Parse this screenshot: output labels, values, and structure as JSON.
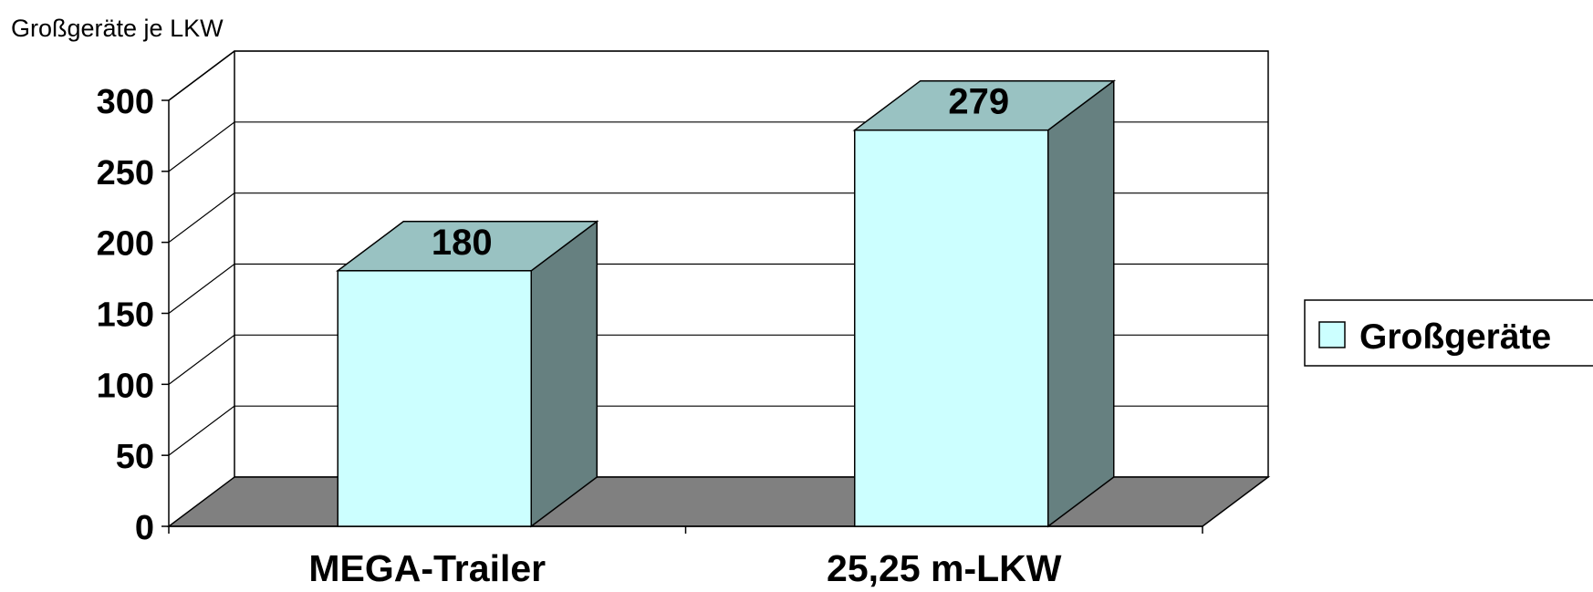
{
  "chart_data": {
    "type": "bar",
    "ylabel": "Großgeräte je LKW",
    "categories": [
      "MEGA-Trailer",
      "25,25 m-LKW"
    ],
    "series": [
      {
        "name": "Großgeräte",
        "values": [
          180,
          279
        ]
      }
    ],
    "ylim": [
      0,
      300
    ],
    "yticks": [
      "0",
      "50",
      "100",
      "150",
      "200",
      "250",
      "300"
    ],
    "data_labels": [
      "180",
      "279"
    ],
    "grid": true,
    "legend": "right",
    "style": "3d",
    "colors": {
      "bar_front": "#CCFFFF",
      "bar_top": "#99C2C2",
      "bar_side": "#668080",
      "floor": "#808080",
      "grid": "#000000"
    }
  }
}
